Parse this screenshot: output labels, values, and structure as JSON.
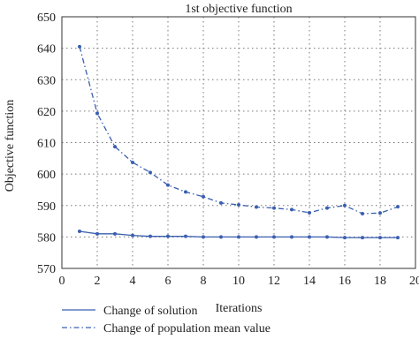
{
  "chart_data": {
    "type": "line",
    "title": "1st objective function",
    "xlabel": "Iterations",
    "ylabel": "Objective function",
    "xlim": [
      0,
      20
    ],
    "ylim": [
      570,
      650
    ],
    "xticks": [
      0,
      2,
      4,
      6,
      8,
      10,
      12,
      14,
      16,
      18,
      20
    ],
    "yticks": [
      570,
      580,
      590,
      600,
      610,
      620,
      630,
      640,
      650
    ],
    "grid": true,
    "grid_style": "dotted",
    "legend_position": "bottom",
    "series": [
      {
        "name": "Change of solution",
        "style": "solid",
        "color": "#3a5fb0",
        "x": [
          1,
          2,
          3,
          4,
          5,
          6,
          7,
          8,
          9,
          10,
          11,
          12,
          13,
          14,
          15,
          16,
          17,
          18,
          19
        ],
        "values": [
          581.8,
          581.0,
          581.0,
          580.5,
          580.2,
          580.2,
          580.2,
          580.0,
          580.0,
          580.0,
          580.0,
          580.0,
          580.0,
          580.0,
          580.0,
          579.8,
          579.8,
          579.8,
          579.8
        ]
      },
      {
        "name": "Change of population mean value",
        "style": "dashed",
        "color": "#3a5fb0",
        "x": [
          1,
          2,
          3,
          4,
          5,
          6,
          7,
          8,
          9,
          10,
          11,
          12,
          13,
          14,
          15,
          16,
          17,
          18,
          19
        ],
        "values": [
          640.5,
          619.3,
          608.7,
          603.7,
          600.5,
          596.5,
          594.3,
          592.8,
          590.8,
          590.2,
          589.5,
          589.2,
          588.7,
          587.7,
          589.2,
          590.0,
          587.4,
          587.6,
          589.6
        ]
      }
    ]
  }
}
